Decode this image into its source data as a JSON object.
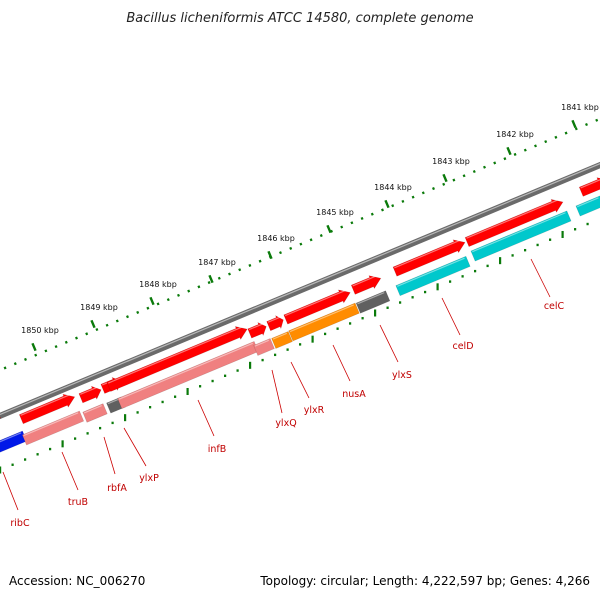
{
  "title": "Bacillus licheniformis ATCC 14580, complete genome",
  "footer": {
    "accession": "Accession: NC_006270",
    "topology": "Topology: circular; Length: 4,222,597 bp; Genes: 4,266"
  },
  "colors": {
    "backbone": "#7a7a7a",
    "ruler_dots": "#0a7a0a",
    "cds_plus": "#ff0000",
    "cds_minus_pink": "#f08080",
    "cds_orange": "#ff8c00",
    "cds_gray": "#606060",
    "cds_cyan": "#00c8cc",
    "cds_blue": "#0018e8",
    "label_line": "#cc0000",
    "label_text": "#c00000"
  },
  "ruler": {
    "ticks": [
      {
        "label": "1841 kbp"
      },
      {
        "label": "1842 kbp"
      },
      {
        "label": "1843 kbp"
      },
      {
        "label": "1844 kbp"
      },
      {
        "label": "1845 kbp"
      },
      {
        "label": "1846 kbp"
      },
      {
        "label": "1847 kbp"
      },
      {
        "label": "1848 kbp"
      },
      {
        "label": "1849 kbp"
      },
      {
        "label": "1850 kbp"
      }
    ]
  },
  "genes": [
    {
      "name": "ribC",
      "color": "cds_blue"
    },
    {
      "name": "truB",
      "color": "cds_minus_pink"
    },
    {
      "name": "rbfA",
      "color": "cds_minus_pink"
    },
    {
      "name": "ylxP",
      "color": "cds_gray"
    },
    {
      "name": "infB",
      "color": "cds_minus_pink"
    },
    {
      "name": "ylxQ",
      "color": "cds_minus_pink"
    },
    {
      "name": "ylxR",
      "color": "cds_orange"
    },
    {
      "name": "nusA",
      "color": "cds_orange"
    },
    {
      "name": "ylxS",
      "color": "cds_gray"
    },
    {
      "name": "celD",
      "color": "cds_cyan"
    },
    {
      "name": "celC",
      "color": "cds_cyan"
    }
  ]
}
